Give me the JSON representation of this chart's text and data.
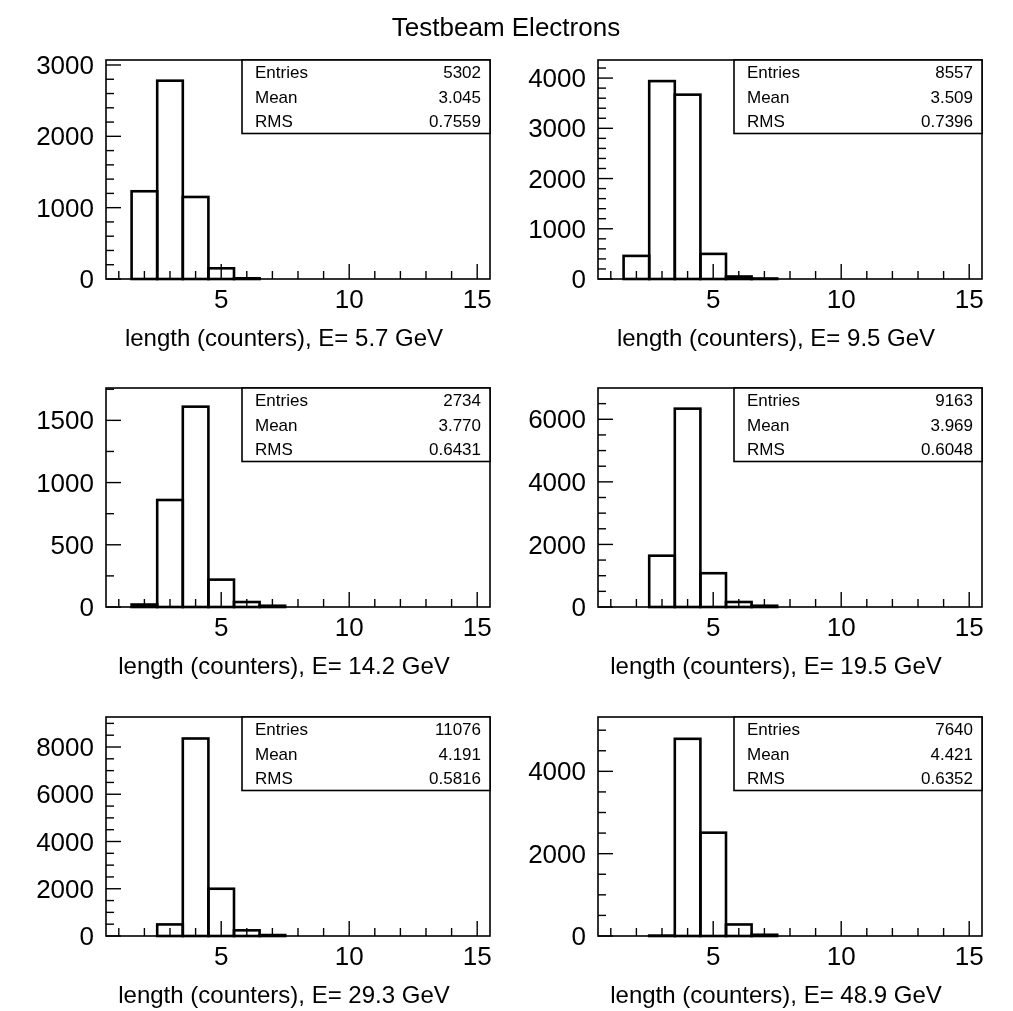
{
  "chart_data": [
    {
      "type": "histogram",
      "title": "Testbeam Electrons",
      "xlabel": "length (counters), E= 5.7 GeV",
      "color": "#000000",
      "bins": [
        0.5,
        1.5,
        2.5,
        3.5,
        4.5,
        5.5,
        6.5,
        7.5,
        8.5,
        9.5,
        10.5,
        11.5,
        12.5,
        13.5,
        14.5,
        15.5
      ],
      "values": [
        0,
        1230,
        2780,
        1150,
        150,
        10,
        0,
        0,
        0,
        0,
        0,
        0,
        0,
        0,
        0
      ],
      "xlim": [
        0.5,
        15.5
      ],
      "ylim": [
        0,
        3070
      ],
      "xticks": [
        {
          "value": 1,
          "label": null
        },
        {
          "value": 2,
          "label": null
        },
        {
          "value": 3,
          "label": null
        },
        {
          "value": 4,
          "label": null
        },
        5,
        {
          "value": 6,
          "label": null
        },
        {
          "value": 7,
          "label": null
        },
        {
          "value": 8,
          "label": null
        },
        {
          "value": 9,
          "label": null
        },
        10,
        {
          "value": 11,
          "label": null
        },
        {
          "value": 12,
          "label": null
        },
        {
          "value": 13,
          "label": null
        },
        {
          "value": 14,
          "label": null
        },
        15
      ],
      "yticks": [
        0,
        {
          "value": 200,
          "label": null
        },
        {
          "value": 400,
          "label": null
        },
        {
          "value": 600,
          "label": null
        },
        {
          "value": 800,
          "label": null
        },
        1000,
        {
          "value": 1200,
          "label": null
        },
        {
          "value": 1400,
          "label": null
        },
        {
          "value": 1600,
          "label": null
        },
        {
          "value": 1800,
          "label": null
        },
        2000,
        {
          "value": 2200,
          "label": null
        },
        {
          "value": 2400,
          "label": null
        },
        {
          "value": 2600,
          "label": null
        },
        {
          "value": 2800,
          "label": null
        },
        3000
      ],
      "annotations": [
        "Entries",
        "5302",
        "Mean",
        "3.045",
        "RMS",
        "0.7559"
      ]
    },
    {
      "type": "histogram",
      "xlabel": "length (counters), E= 9.5 GeV",
      "color": "#000000",
      "bins": [
        0.5,
        1.5,
        2.5,
        3.5,
        4.5,
        5.5,
        6.5,
        7.5,
        8.5,
        9.5,
        10.5,
        11.5,
        12.5,
        13.5,
        14.5,
        15.5
      ],
      "values": [
        0,
        460,
        3940,
        3670,
        500,
        50,
        10,
        0,
        0,
        0,
        0,
        0,
        0,
        0,
        0
      ],
      "xlim": [
        0.5,
        15.5
      ],
      "ylim": [
        0,
        4360
      ],
      "xticks": [
        {
          "value": 1,
          "label": null
        },
        {
          "value": 2,
          "label": null
        },
        {
          "value": 3,
          "label": null
        },
        {
          "value": 4,
          "label": null
        },
        5,
        {
          "value": 6,
          "label": null
        },
        {
          "value": 7,
          "label": null
        },
        {
          "value": 8,
          "label": null
        },
        {
          "value": 9,
          "label": null
        },
        10,
        {
          "value": 11,
          "label": null
        },
        {
          "value": 12,
          "label": null
        },
        {
          "value": 13,
          "label": null
        },
        {
          "value": 14,
          "label": null
        },
        15
      ],
      "yticks": [
        0,
        {
          "value": 200,
          "label": null
        },
        {
          "value": 400,
          "label": null
        },
        {
          "value": 600,
          "label": null
        },
        {
          "value": 800,
          "label": null
        },
        1000,
        {
          "value": 1200,
          "label": null
        },
        {
          "value": 1400,
          "label": null
        },
        {
          "value": 1600,
          "label": null
        },
        {
          "value": 1800,
          "label": null
        },
        2000,
        {
          "value": 2200,
          "label": null
        },
        {
          "value": 2400,
          "label": null
        },
        {
          "value": 2600,
          "label": null
        },
        {
          "value": 2800,
          "label": null
        },
        3000,
        {
          "value": 3200,
          "label": null
        },
        {
          "value": 3400,
          "label": null
        },
        {
          "value": 3600,
          "label": null
        },
        {
          "value": 3800,
          "label": null
        },
        4000,
        {
          "value": 4200,
          "label": null
        }
      ],
      "annotations": [
        "Entries",
        "8557",
        "Mean",
        "3.509",
        "RMS",
        "0.7396"
      ]
    },
    {
      "type": "histogram",
      "xlabel": "length (counters), E= 14.2 GeV",
      "color": "#000000",
      "bins": [
        0.5,
        1.5,
        2.5,
        3.5,
        4.5,
        5.5,
        6.5,
        7.5,
        8.5,
        9.5,
        10.5,
        11.5,
        12.5,
        13.5,
        14.5,
        15.5
      ],
      "values": [
        0,
        20,
        860,
        1610,
        220,
        40,
        10,
        0,
        0,
        0,
        0,
        0,
        0,
        0,
        0
      ],
      "xlim": [
        0.5,
        15.5
      ],
      "ylim": [
        0,
        1760
      ],
      "xticks": [
        {
          "value": 1,
          "label": null
        },
        {
          "value": 2,
          "label": null
        },
        {
          "value": 3,
          "label": null
        },
        {
          "value": 4,
          "label": null
        },
        5,
        {
          "value": 6,
          "label": null
        },
        {
          "value": 7,
          "label": null
        },
        {
          "value": 8,
          "label": null
        },
        {
          "value": 9,
          "label": null
        },
        10,
        {
          "value": 11,
          "label": null
        },
        {
          "value": 12,
          "label": null
        },
        {
          "value": 13,
          "label": null
        },
        {
          "value": 14,
          "label": null
        },
        15
      ],
      "yticks": [
        0,
        {
          "value": 250,
          "label": null
        },
        500,
        {
          "value": 750,
          "label": null
        },
        1000,
        {
          "value": 1250,
          "label": null
        },
        1500,
        {
          "value": 1750,
          "label": null
        }
      ],
      "annotations": [
        "Entries",
        "2734",
        "Mean",
        "3.770",
        "RMS",
        "0.6431"
      ]
    },
    {
      "type": "histogram",
      "xlabel": "length (counters), E= 19.5 GeV",
      "color": "#000000",
      "bins": [
        0.5,
        1.5,
        2.5,
        3.5,
        4.5,
        5.5,
        6.5,
        7.5,
        8.5,
        9.5,
        10.5,
        11.5,
        12.5,
        13.5,
        14.5,
        15.5
      ],
      "values": [
        0,
        0,
        1640,
        6340,
        1080,
        160,
        40,
        0,
        0,
        0,
        0,
        0,
        0,
        0,
        0
      ],
      "xlim": [
        0.5,
        15.5
      ],
      "ylim": [
        0,
        7000
      ],
      "xticks": [
        {
          "value": 1,
          "label": null
        },
        {
          "value": 2,
          "label": null
        },
        {
          "value": 3,
          "label": null
        },
        {
          "value": 4,
          "label": null
        },
        5,
        {
          "value": 6,
          "label": null
        },
        {
          "value": 7,
          "label": null
        },
        {
          "value": 8,
          "label": null
        },
        {
          "value": 9,
          "label": null
        },
        10,
        {
          "value": 11,
          "label": null
        },
        {
          "value": 12,
          "label": null
        },
        {
          "value": 13,
          "label": null
        },
        {
          "value": 14,
          "label": null
        },
        15
      ],
      "yticks": [
        0,
        {
          "value": 500,
          "label": null
        },
        {
          "value": 1000,
          "label": null
        },
        {
          "value": 1500,
          "label": null
        },
        2000,
        {
          "value": 2500,
          "label": null
        },
        {
          "value": 3000,
          "label": null
        },
        {
          "value": 3500,
          "label": null
        },
        4000,
        {
          "value": 4500,
          "label": null
        },
        {
          "value": 5000,
          "label": null
        },
        {
          "value": 5500,
          "label": null
        },
        6000,
        {
          "value": 6500,
          "label": null
        }
      ],
      "annotations": [
        "Entries",
        "9163",
        "Mean",
        "3.969",
        "RMS",
        "0.6048"
      ]
    },
    {
      "type": "histogram",
      "xlabel": "length (counters), E= 29.3 GeV",
      "color": "#000000",
      "bins": [
        0.5,
        1.5,
        2.5,
        3.5,
        4.5,
        5.5,
        6.5,
        7.5,
        8.5,
        9.5,
        10.5,
        11.5,
        12.5,
        13.5,
        14.5,
        15.5
      ],
      "values": [
        0,
        0,
        490,
        8360,
        2000,
        240,
        40,
        0,
        0,
        0,
        0,
        0,
        0,
        0,
        0
      ],
      "xlim": [
        0.5,
        15.5
      ],
      "ylim": [
        0,
        9270
      ],
      "xticks": [
        {
          "value": 1,
          "label": null
        },
        {
          "value": 2,
          "label": null
        },
        {
          "value": 3,
          "label": null
        },
        {
          "value": 4,
          "label": null
        },
        5,
        {
          "value": 6,
          "label": null
        },
        {
          "value": 7,
          "label": null
        },
        {
          "value": 8,
          "label": null
        },
        {
          "value": 9,
          "label": null
        },
        10,
        {
          "value": 11,
          "label": null
        },
        {
          "value": 12,
          "label": null
        },
        {
          "value": 13,
          "label": null
        },
        {
          "value": 14,
          "label": null
        },
        15
      ],
      "yticks": [
        0,
        {
          "value": 500,
          "label": null
        },
        {
          "value": 1000,
          "label": null
        },
        {
          "value": 1500,
          "label": null
        },
        2000,
        {
          "value": 2500,
          "label": null
        },
        {
          "value": 3000,
          "label": null
        },
        {
          "value": 3500,
          "label": null
        },
        4000,
        {
          "value": 4500,
          "label": null
        },
        {
          "value": 5000,
          "label": null
        },
        {
          "value": 5500,
          "label": null
        },
        6000,
        {
          "value": 6500,
          "label": null
        },
        {
          "value": 7000,
          "label": null
        },
        {
          "value": 7500,
          "label": null
        },
        8000,
        {
          "value": 8500,
          "label": null
        },
        {
          "value": 9000,
          "label": null
        }
      ],
      "annotations": [
        "Entries",
        "11076",
        "Mean",
        "4.191",
        "RMS",
        "0.5816"
      ]
    },
    {
      "type": "histogram",
      "xlabel": "length (counters), E= 48.9 GeV",
      "color": "#000000",
      "bins": [
        0.5,
        1.5,
        2.5,
        3.5,
        4.5,
        5.5,
        6.5,
        7.5,
        8.5,
        9.5,
        10.5,
        11.5,
        12.5,
        13.5,
        14.5,
        15.5
      ],
      "values": [
        0,
        0,
        10,
        4790,
        2510,
        280,
        30,
        0,
        0,
        0,
        0,
        0,
        0,
        0,
        0
      ],
      "xlim": [
        0.5,
        15.5
      ],
      "ylim": [
        0,
        5320
      ],
      "xticks": [
        {
          "value": 1,
          "label": null
        },
        {
          "value": 2,
          "label": null
        },
        {
          "value": 3,
          "label": null
        },
        {
          "value": 4,
          "label": null
        },
        5,
        {
          "value": 6,
          "label": null
        },
        {
          "value": 7,
          "label": null
        },
        {
          "value": 8,
          "label": null
        },
        {
          "value": 9,
          "label": null
        },
        10,
        {
          "value": 11,
          "label": null
        },
        {
          "value": 12,
          "label": null
        },
        {
          "value": 13,
          "label": null
        },
        {
          "value": 14,
          "label": null
        },
        15
      ],
      "yticks": [
        0,
        {
          "value": 500,
          "label": null
        },
        {
          "value": 1000,
          "label": null
        },
        {
          "value": 1500,
          "label": null
        },
        2000,
        {
          "value": 2500,
          "label": null
        },
        {
          "value": 3000,
          "label": null
        },
        {
          "value": 3500,
          "label": null
        },
        4000,
        {
          "value": 4500,
          "label": null
        },
        {
          "value": 5000,
          "label": null
        }
      ],
      "annotations": [
        "Entries",
        "7640",
        "Mean",
        "4.421",
        "RMS",
        "0.6352"
      ]
    }
  ]
}
